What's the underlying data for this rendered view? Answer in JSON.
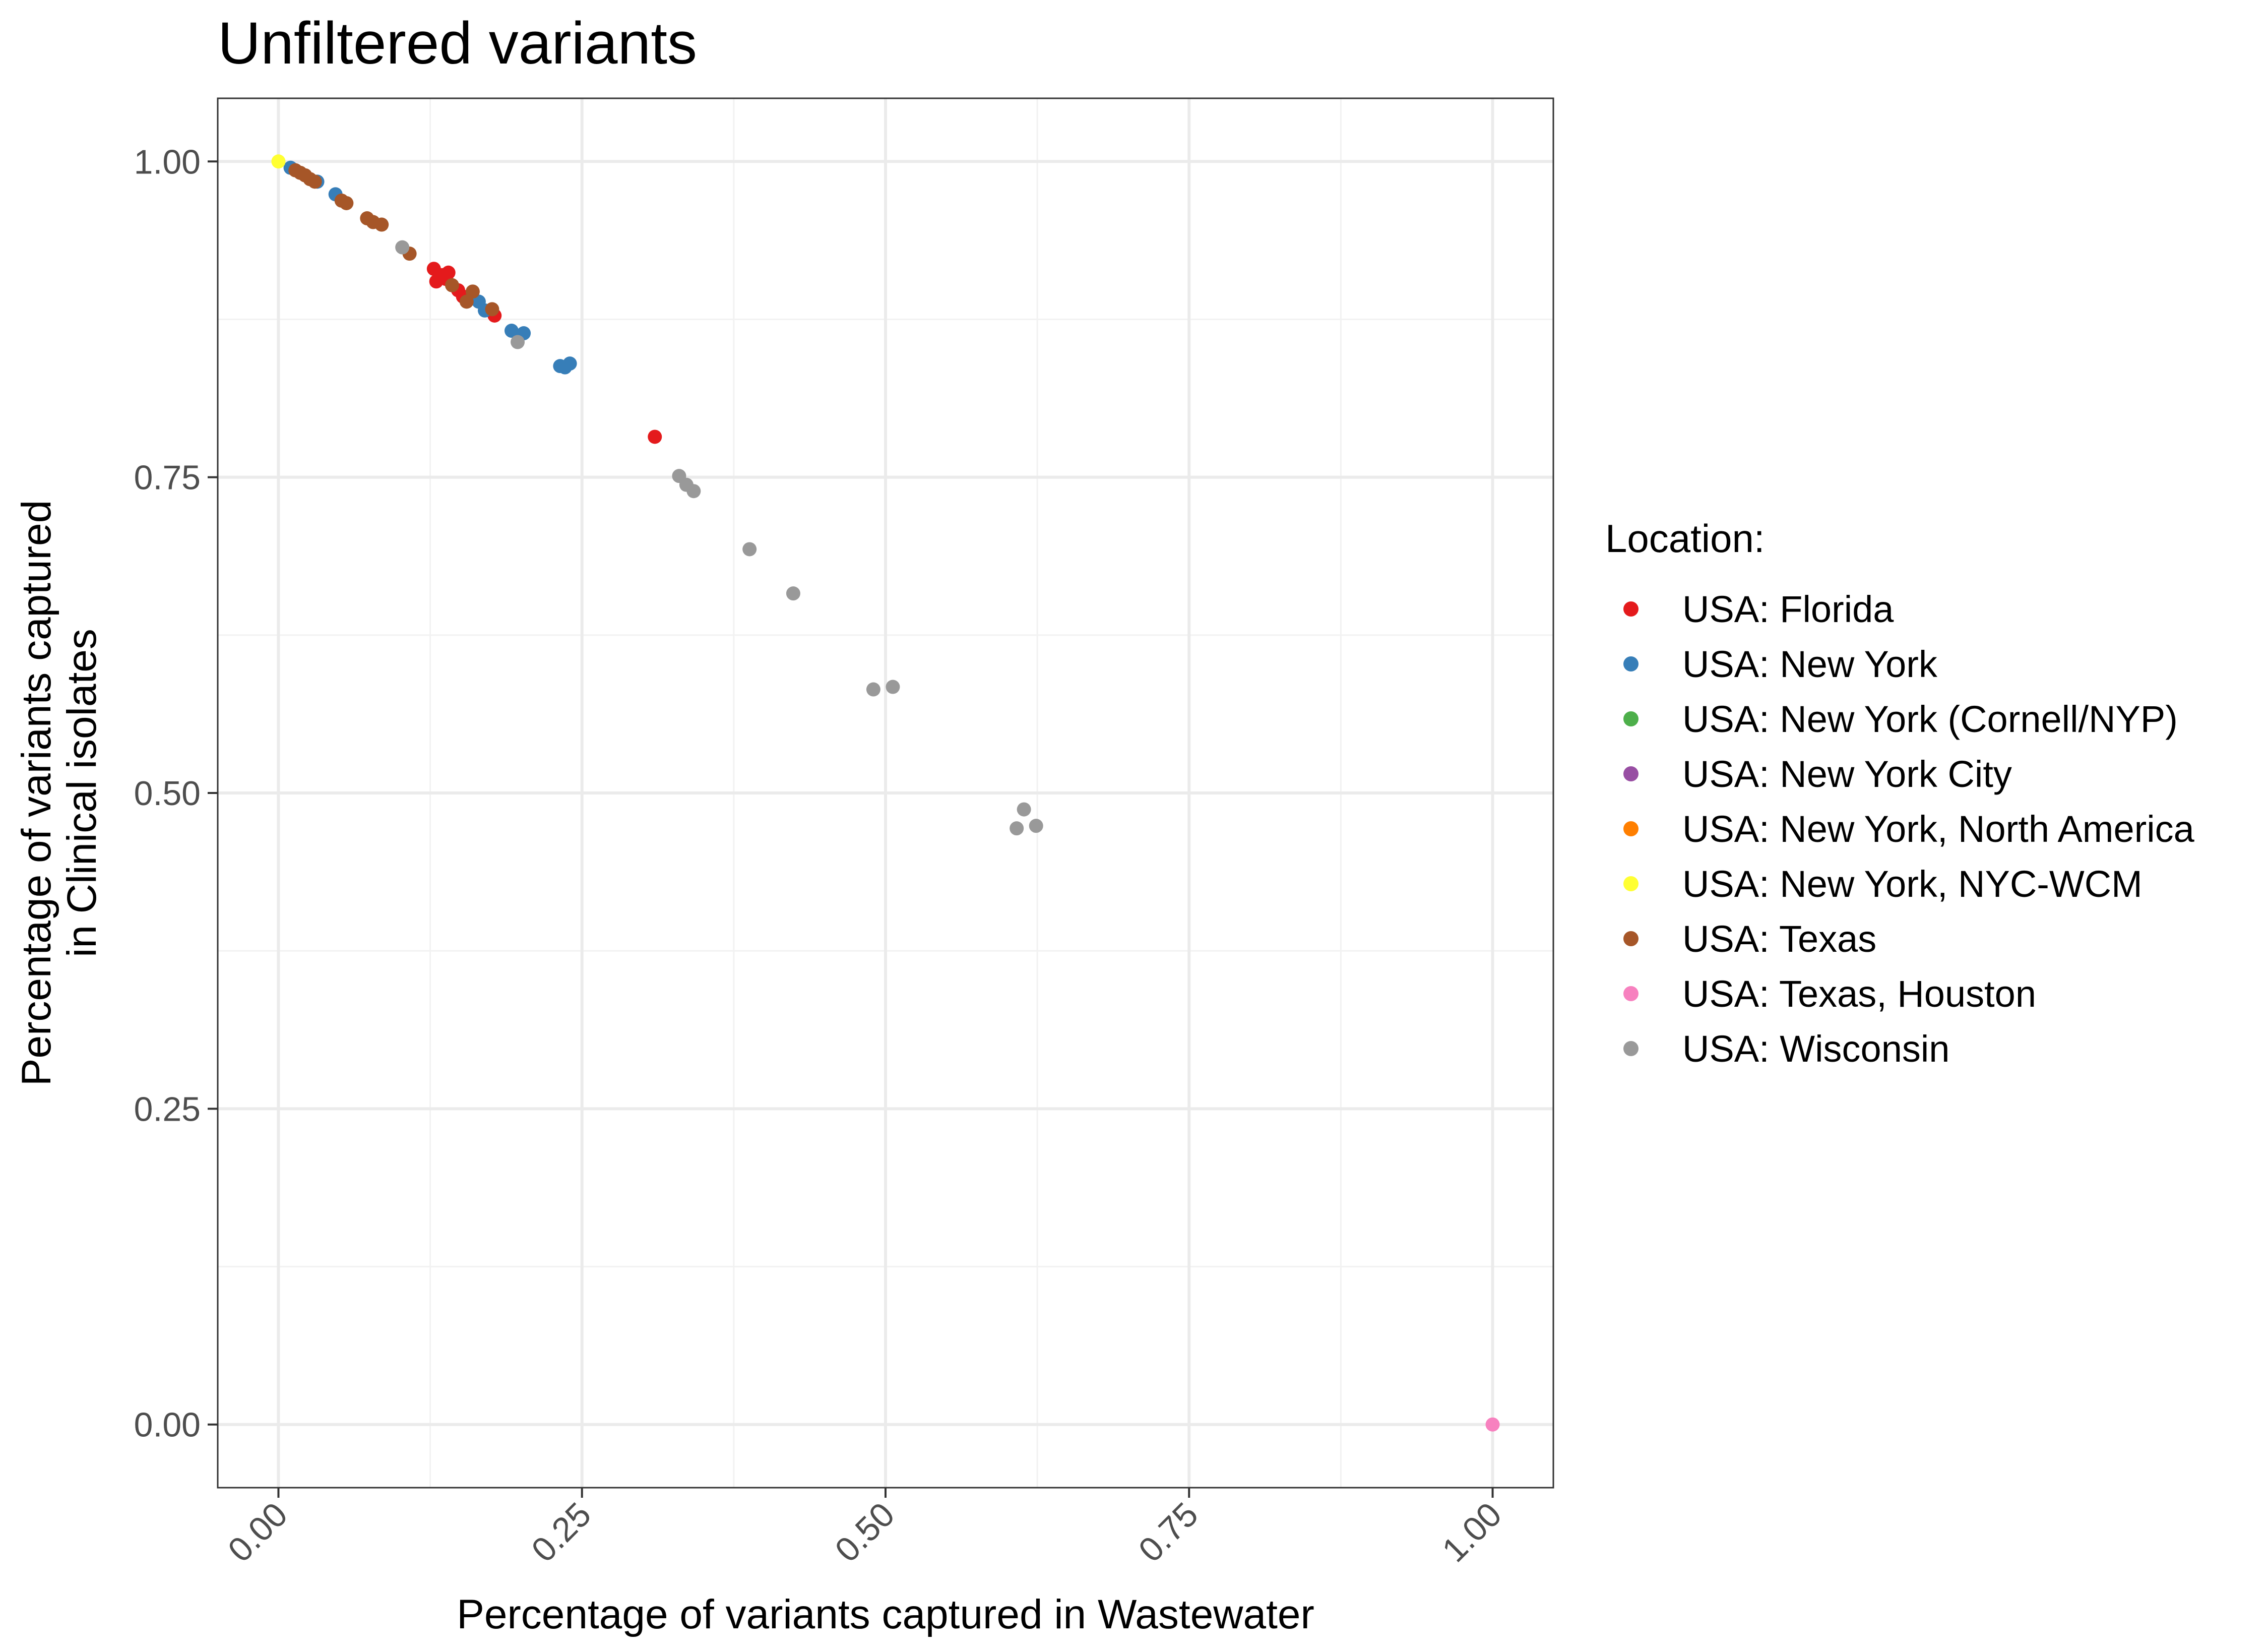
{
  "chart_data": {
    "type": "scatter",
    "title": "Unfiltered variants",
    "xlabel": "Percentage of variants captured in  Wastewater",
    "ylabel": [
      "Percentage of variants captured",
      "in Clinical isolates"
    ],
    "xlim": [
      -0.05,
      1.05
    ],
    "ylim": [
      -0.05,
      1.05
    ],
    "xticks": [
      "0.00",
      "0.25",
      "0.50",
      "0.75",
      "1.00"
    ],
    "yticks": [
      "0.00",
      "0.25",
      "0.50",
      "0.75",
      "1.00"
    ],
    "tick_values": [
      0,
      0.25,
      0.5,
      0.75,
      1
    ],
    "grid": true,
    "legend": {
      "title": "Location:",
      "position": "right",
      "entries": [
        {
          "label": "USA: Florida",
          "color": "#e41a1c"
        },
        {
          "label": "USA: New York",
          "color": "#377eb8"
        },
        {
          "label": "USA: New York (Cornell/NYP)",
          "color": "#4daf4a"
        },
        {
          "label": "USA: New York City",
          "color": "#984ea3"
        },
        {
          "label": "USA: New York, North America",
          "color": "#ff7f00"
        },
        {
          "label": "USA: New York, NYC-WCM",
          "color": "#ffff33"
        },
        {
          "label": "USA: Texas",
          "color": "#a65628"
        },
        {
          "label": "USA: Texas, Houston",
          "color": "#f781bf"
        },
        {
          "label": "USA: Wisconsin",
          "color": "#999999"
        }
      ]
    },
    "series": [
      {
        "name": "USA: Florida",
        "color": "#e41a1c",
        "points": [
          [
            0.128,
            0.915
          ],
          [
            0.135,
            0.91
          ],
          [
            0.14,
            0.912
          ],
          [
            0.13,
            0.905
          ],
          [
            0.138,
            0.907
          ],
          [
            0.148,
            0.898
          ],
          [
            0.152,
            0.893
          ],
          [
            0.178,
            0.878
          ],
          [
            0.31,
            0.782
          ]
        ]
      },
      {
        "name": "USA: New York",
        "color": "#377eb8",
        "points": [
          [
            0.01,
            0.995
          ],
          [
            0.032,
            0.984
          ],
          [
            0.047,
            0.974
          ],
          [
            0.165,
            0.889
          ],
          [
            0.17,
            0.882
          ],
          [
            0.192,
            0.866
          ],
          [
            0.202,
            0.864
          ],
          [
            0.232,
            0.838
          ],
          [
            0.236,
            0.837
          ],
          [
            0.24,
            0.84
          ]
        ]
      },
      {
        "name": "USA: New York (Cornell/NYP)",
        "color": "#4daf4a",
        "points": []
      },
      {
        "name": "USA: New York City",
        "color": "#984ea3",
        "points": []
      },
      {
        "name": "USA: New York, North America",
        "color": "#ff7f00",
        "points": []
      },
      {
        "name": "USA: New York, NYC-WCM",
        "color": "#ffff33",
        "points": [
          [
            0.0,
            1.0
          ]
        ]
      },
      {
        "name": "USA: Texas",
        "color": "#a65628",
        "points": [
          [
            0.014,
            0.993
          ],
          [
            0.018,
            0.991
          ],
          [
            0.022,
            0.989
          ],
          [
            0.026,
            0.986
          ],
          [
            0.03,
            0.984
          ],
          [
            0.052,
            0.969
          ],
          [
            0.056,
            0.967
          ],
          [
            0.073,
            0.955
          ],
          [
            0.078,
            0.952
          ],
          [
            0.085,
            0.95
          ],
          [
            0.108,
            0.927
          ],
          [
            0.143,
            0.902
          ],
          [
            0.155,
            0.889
          ],
          [
            0.16,
            0.897
          ],
          [
            0.176,
            0.883
          ]
        ]
      },
      {
        "name": "USA: Texas, Houston",
        "color": "#f781bf",
        "points": [
          [
            1.0,
            0.0
          ]
        ]
      },
      {
        "name": "USA: Wisconsin",
        "color": "#999999",
        "points": [
          [
            0.102,
            0.932
          ],
          [
            0.197,
            0.857
          ],
          [
            0.33,
            0.751
          ],
          [
            0.336,
            0.744
          ],
          [
            0.342,
            0.739
          ],
          [
            0.388,
            0.693
          ],
          [
            0.424,
            0.658
          ],
          [
            0.49,
            0.582
          ],
          [
            0.506,
            0.584
          ],
          [
            0.608,
            0.472
          ],
          [
            0.614,
            0.487
          ],
          [
            0.624,
            0.474
          ]
        ]
      }
    ]
  }
}
